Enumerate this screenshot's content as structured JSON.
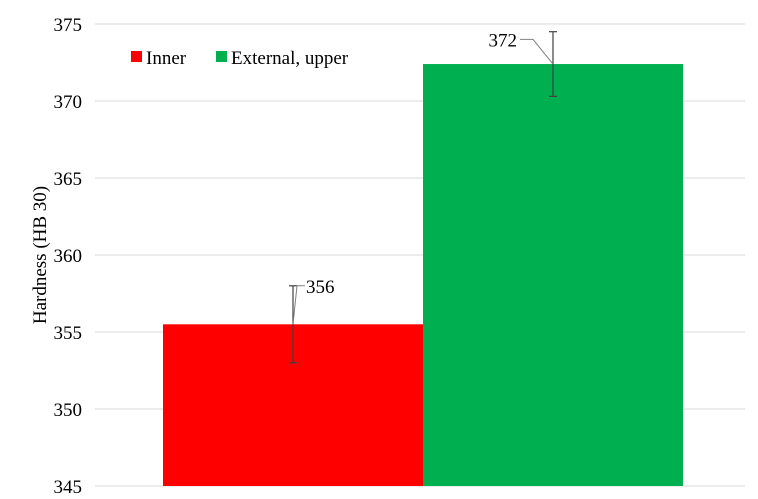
{
  "chart_data": {
    "type": "bar",
    "title": "",
    "xlabel": "",
    "ylabel": "Hardness (HB 30)",
    "ylim": [
      345,
      375
    ],
    "yticks": [
      345,
      350,
      355,
      360,
      365,
      370,
      375
    ],
    "grid": true,
    "legend_position": "top-left",
    "series": [
      {
        "name": "Inner",
        "value": 355.5,
        "error": 2.5,
        "label": "356",
        "color": "#ff0000"
      },
      {
        "name": "External, upper",
        "value": 372.4,
        "error": 2.1,
        "label": "372",
        "color": "#00b050"
      }
    ]
  }
}
